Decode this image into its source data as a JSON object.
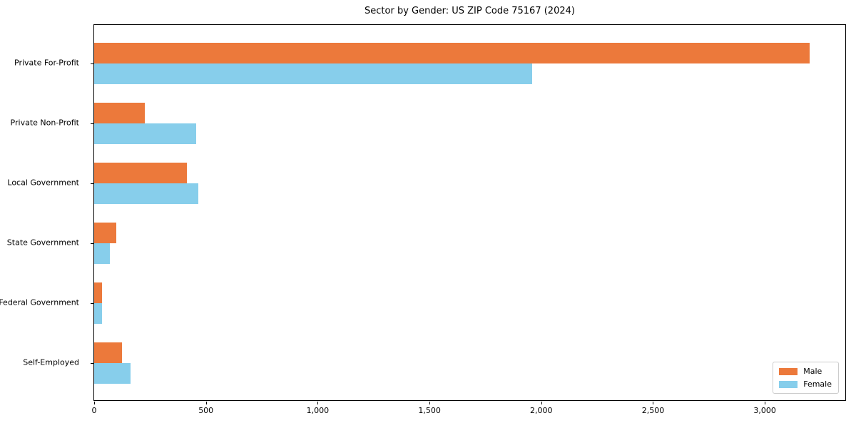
{
  "title": "Sector by Gender: US ZIP Code 75167 (2024)",
  "colors": {
    "male": "#EC793B",
    "female": "#87CEEB",
    "axis": "#000000",
    "legend_border": "#cccccc"
  },
  "chart_data": {
    "type": "bar",
    "orientation": "horizontal",
    "title": "Sector by Gender: US ZIP Code 75167 (2024)",
    "categories": [
      "Private For-Profit",
      "Private Non-Profit",
      "Local Government",
      "State Government",
      "Federal Government",
      "Self-Employed"
    ],
    "series": [
      {
        "name": "Male",
        "color": "#EC793B",
        "values": [
          3200,
          228,
          415,
          99,
          35,
          123
        ]
      },
      {
        "name": "Female",
        "color": "#87CEEB",
        "values": [
          1960,
          457,
          465,
          71,
          34,
          164
        ]
      }
    ],
    "xlabel": "",
    "ylabel": "",
    "xlim": [
      0,
      3360
    ],
    "xticks": [
      0,
      500,
      1000,
      1500,
      2000,
      2500,
      3000
    ],
    "xtick_labels": [
      "0",
      "500",
      "1,000",
      "1,500",
      "2,000",
      "2,500",
      "3,000"
    ],
    "grid": false,
    "legend": {
      "position": "lower right",
      "entries": [
        "Male",
        "Female"
      ]
    }
  }
}
